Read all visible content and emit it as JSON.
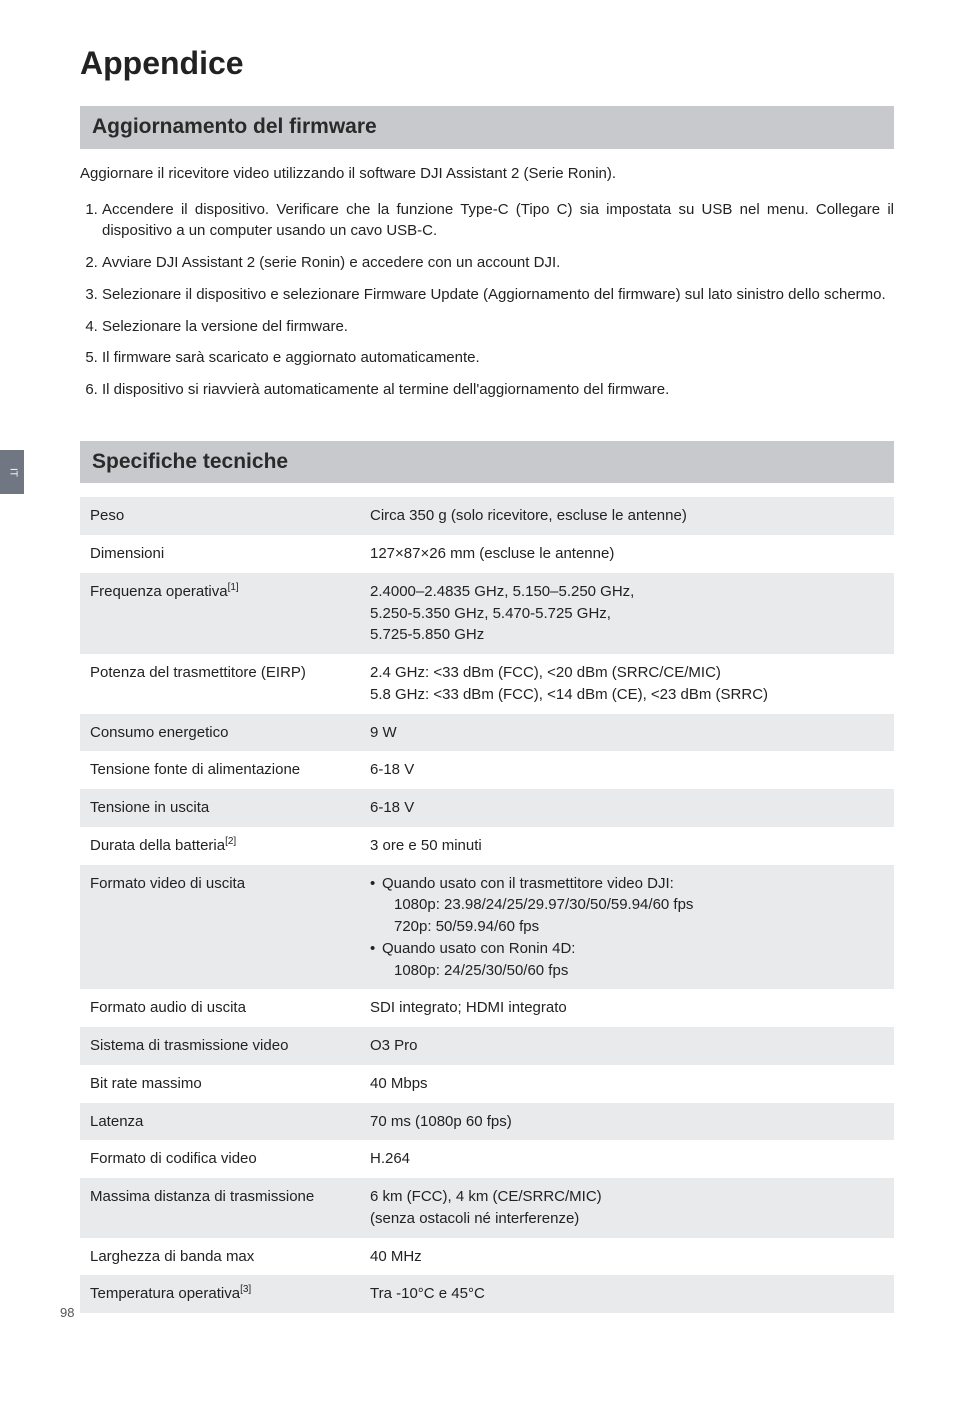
{
  "sideTab": "IT",
  "pageNumber": "98",
  "title": "Appendice",
  "section1": {
    "heading": "Aggiornamento del firmware",
    "intro": "Aggiornare il ricevitore video utilizzando il software DJI Assistant 2 (Serie Ronin).",
    "steps": [
      "Accendere il dispositivo. Verificare che la funzione Type-C (Tipo C) sia impostata su USB nel menu. Collegare il dispositivo a un computer usando un cavo USB-C.",
      "Avviare DJI Assistant 2 (serie Ronin) e accedere con un account DJI.",
      "Selezionare il dispositivo e selezionare Firmware Update (Aggiornamento del firmware) sul lato sinistro dello schermo.",
      "Selezionare la versione del firmware.",
      "Il firmware sarà scaricato e aggiornato automaticamente.",
      "Il dispositivo si riavvierà automaticamente al termine dell'aggiornamento del firmware."
    ]
  },
  "section2": {
    "heading": "Specifiche tecniche",
    "rows": [
      {
        "label": "Peso",
        "sup": "",
        "value": "Circa 350 g  (solo ricevitore, escluse le antenne)"
      },
      {
        "label": "Dimensioni",
        "sup": "",
        "value": "127×87×26 mm (escluse le antenne)"
      },
      {
        "label": "Frequenza operativa",
        "sup": "[1]",
        "value": "2.4000–2.4835 GHz, 5.150–5.250 GHz,\n5.250-5.350 GHz, 5.470-5.725 GHz,\n5.725-5.850 GHz"
      },
      {
        "label": "Potenza del trasmettitore (EIRP)",
        "sup": "",
        "value": "2.4 GHz: <33 dBm (FCC), <20 dBm (SRRC/CE/MIC)\n5.8 GHz: <33 dBm (FCC), <14 dBm (CE), <23 dBm (SRRC)"
      },
      {
        "label": "Consumo energetico",
        "sup": "",
        "value": "9 W"
      },
      {
        "label": "Tensione fonte di alimentazione",
        "sup": "",
        "value": "6-18 V"
      },
      {
        "label": "Tensione in uscita",
        "sup": "",
        "value": "6-18 V"
      },
      {
        "label": "Durata della batteria",
        "sup": "[2]",
        "value": "3 ore e  50  minuti"
      },
      {
        "label": "Formato video di uscita",
        "sup": "",
        "bullets": [
          {
            "head": "Quando usato con il trasmettitore video DJI:",
            "lines": [
              "1080p: 23.98/24/25/29.97/30/50/59.94/60 fps",
              "720p: 50/59.94/60 fps"
            ]
          },
          {
            "head": "Quando usato con Ronin 4D:",
            "lines": [
              "1080p: 24/25/30/50/60 fps"
            ]
          }
        ]
      },
      {
        "label": "Formato audio di uscita",
        "sup": "",
        "value": "SDI integrato; HDMI integrato"
      },
      {
        "label": "Sistema di trasmissione video",
        "sup": "",
        "value": "O3 Pro"
      },
      {
        "label": "Bit rate massimo",
        "sup": "",
        "value": "40 Mbps"
      },
      {
        "label": "Latenza",
        "sup": "",
        "value": "70 ms (1080p 60 fps)"
      },
      {
        "label": "Formato di codifica video",
        "sup": "",
        "value": "H.264"
      },
      {
        "label": "Massima distanza di trasmissione",
        "sup": "",
        "value": "6 km (FCC), 4 km (CE/SRRC/MIC)\n(senza ostacoli né interferenze)"
      },
      {
        "label": "Larghezza di banda max",
        "sup": "",
        "value": "40 MHz"
      },
      {
        "label": "Temperatura operativa",
        "sup": "[3]",
        "value": "Tra -10°C e 45°C"
      }
    ]
  },
  "colors": {
    "barBg": "#c7c9cc",
    "rowOdd": "#e9eaec",
    "rowEven": "#ffffff",
    "sideTabBg": "#707682"
  }
}
